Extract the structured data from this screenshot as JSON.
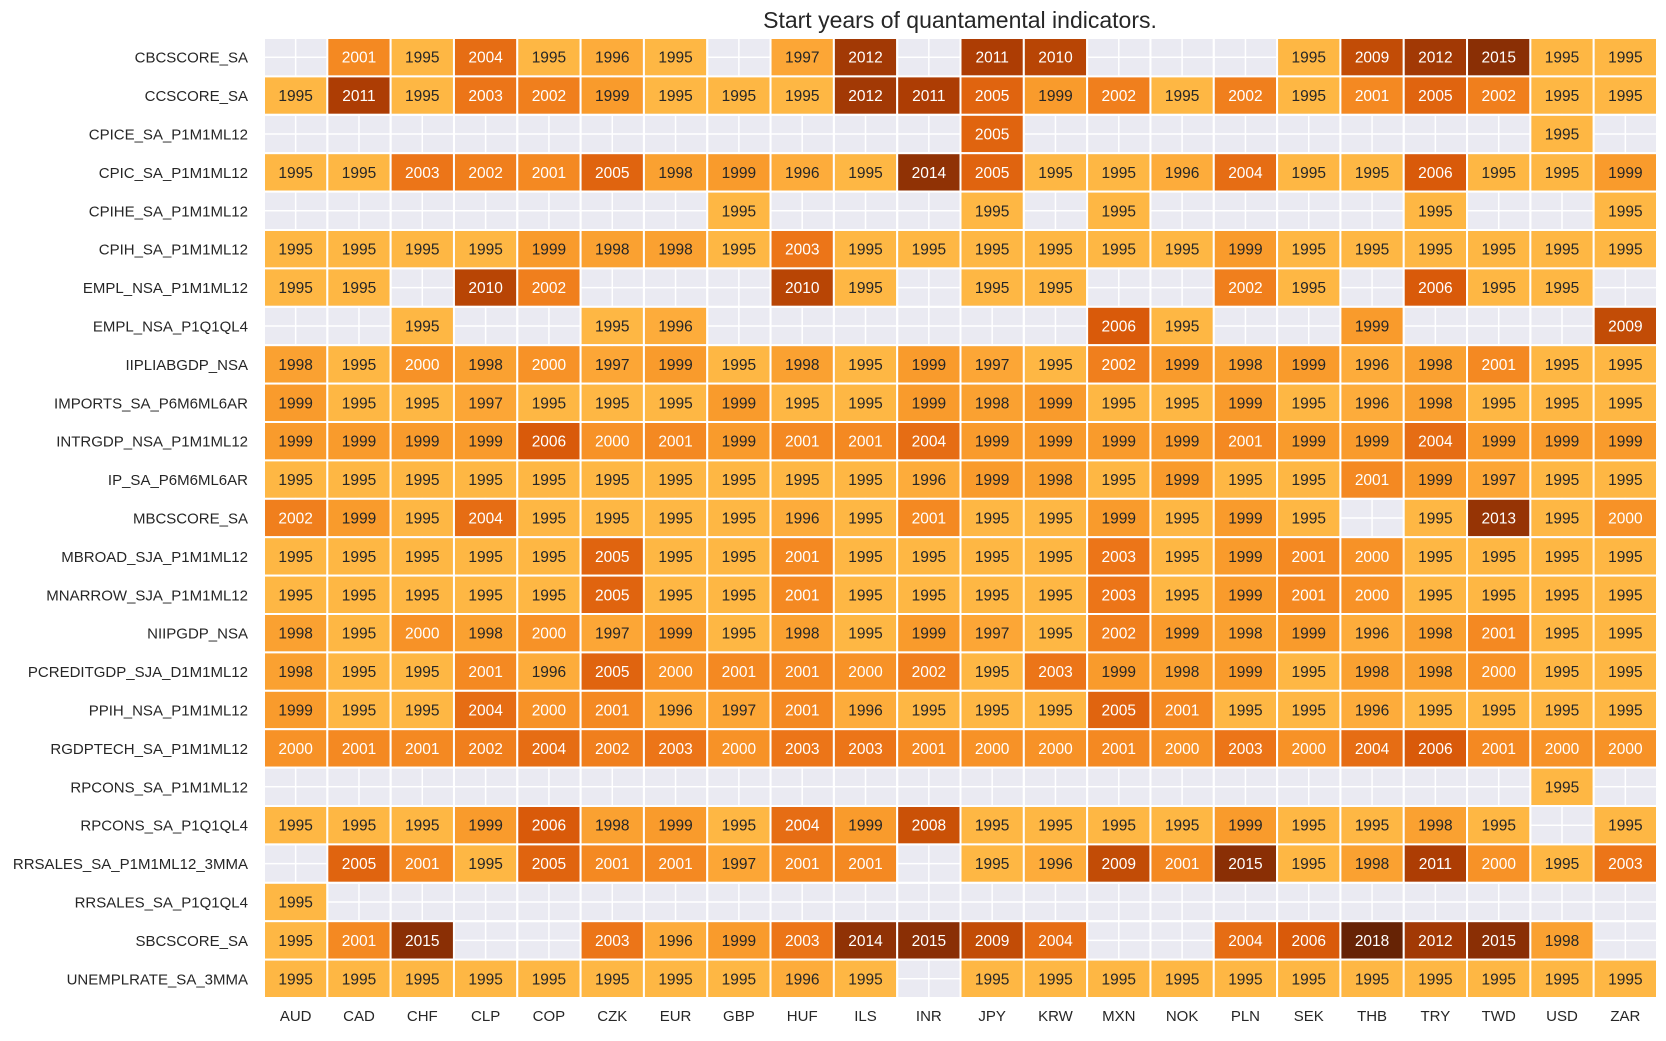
{
  "chart_data": {
    "type": "heatmap",
    "title": "Start years of quantamental indicators.",
    "xlabel": "",
    "ylabel": "",
    "colormap": "YlOrBr",
    "color_range": [
      1995,
      2018
    ],
    "missing_color": "#eaeaf2",
    "grid": true,
    "x": [
      "AUD",
      "CAD",
      "CHF",
      "CLP",
      "COP",
      "CZK",
      "EUR",
      "GBP",
      "HUF",
      "ILS",
      "INR",
      "JPY",
      "KRW",
      "MXN",
      "NOK",
      "PLN",
      "SEK",
      "THB",
      "TRY",
      "TWD",
      "USD",
      "ZAR"
    ],
    "y": [
      "CBCSCORE_SA",
      "CCSCORE_SA",
      "CPICE_SA_P1M1ML12",
      "CPIC_SA_P1M1ML12",
      "CPIHE_SA_P1M1ML12",
      "CPIH_SA_P1M1ML12",
      "EMPL_NSA_P1M1ML12",
      "EMPL_NSA_P1Q1QL4",
      "IIPLIABGDP_NSA",
      "IMPORTS_SA_P6M6ML6AR",
      "INTRGDP_NSA_P1M1ML12",
      "IP_SA_P6M6ML6AR",
      "MBCSCORE_SA",
      "MBROAD_SJA_P1M1ML12",
      "MNARROW_SJA_P1M1ML12",
      "NIIPGDP_NSA",
      "PCREDITGDP_SJA_D1M1ML12",
      "PPIH_NSA_P1M1ML12",
      "RGDPTECH_SA_P1M1ML12",
      "RPCONS_SA_P1M1ML12",
      "RPCONS_SA_P1Q1QL4",
      "RRSALES_SA_P1M1ML12_3MMA",
      "RRSALES_SA_P1Q1QL4",
      "SBCSCORE_SA",
      "UNEMPLRATE_SA_3MMA"
    ],
    "values": [
      [
        null,
        2001,
        1995,
        2004,
        1995,
        1996,
        1995,
        null,
        1997,
        2012,
        null,
        2011,
        2010,
        null,
        null,
        null,
        1995,
        2009,
        2012,
        2015,
        1995,
        1995
      ],
      [
        1995,
        2011,
        1995,
        2003,
        2002,
        1999,
        1995,
        1995,
        1995,
        2012,
        2011,
        2005,
        1999,
        2002,
        1995,
        2002,
        1995,
        2001,
        2005,
        2002,
        1995,
        1995
      ],
      [
        null,
        null,
        null,
        null,
        null,
        null,
        null,
        null,
        null,
        null,
        null,
        2005,
        null,
        null,
        null,
        null,
        null,
        null,
        null,
        null,
        1995,
        null
      ],
      [
        1995,
        1995,
        2003,
        2002,
        2001,
        2005,
        1998,
        1999,
        1996,
        1995,
        2014,
        2005,
        1995,
        1995,
        1996,
        2004,
        1995,
        1995,
        2006,
        1995,
        1995,
        1999
      ],
      [
        null,
        null,
        null,
        null,
        null,
        null,
        null,
        1995,
        null,
        null,
        null,
        1995,
        null,
        1995,
        null,
        null,
        null,
        null,
        1995,
        null,
        null,
        1995
      ],
      [
        1995,
        1995,
        1995,
        1995,
        1999,
        1998,
        1998,
        1995,
        2003,
        1995,
        1995,
        1995,
        1995,
        1995,
        1995,
        1999,
        1995,
        1995,
        1995,
        1995,
        1995,
        1995
      ],
      [
        1995,
        1995,
        null,
        2010,
        2002,
        null,
        null,
        null,
        2010,
        1995,
        null,
        1995,
        1995,
        null,
        null,
        2002,
        1995,
        null,
        2006,
        1995,
        1995,
        null
      ],
      [
        null,
        null,
        1995,
        null,
        null,
        1995,
        1996,
        null,
        null,
        null,
        null,
        null,
        null,
        2006,
        1995,
        null,
        null,
        1999,
        null,
        null,
        null,
        2009
      ],
      [
        1998,
        1995,
        2000,
        1998,
        2000,
        1997,
        1999,
        1995,
        1998,
        1995,
        1999,
        1997,
        1995,
        2002,
        1999,
        1998,
        1999,
        1996,
        1998,
        2001,
        1995,
        1995
      ],
      [
        1999,
        1995,
        1995,
        1997,
        1995,
        1995,
        1995,
        1999,
        1995,
        1995,
        1999,
        1998,
        1999,
        1995,
        1995,
        1999,
        1995,
        1996,
        1998,
        1995,
        1995,
        1995
      ],
      [
        1999,
        1999,
        1999,
        1999,
        2006,
        2000,
        2001,
        1999,
        2001,
        2001,
        2004,
        1999,
        1999,
        1999,
        1999,
        2001,
        1999,
        1999,
        2004,
        1999,
        1999,
        1999
      ],
      [
        1995,
        1995,
        1995,
        1995,
        1995,
        1995,
        1995,
        1995,
        1995,
        1995,
        1996,
        1999,
        1998,
        1995,
        1999,
        1995,
        1995,
        2001,
        1999,
        1997,
        1995,
        1995
      ],
      [
        2002,
        1999,
        1995,
        2004,
        1995,
        1995,
        1995,
        1995,
        1996,
        1995,
        2001,
        1995,
        1995,
        1999,
        1995,
        1999,
        1995,
        null,
        1995,
        2013,
        1995,
        2000
      ],
      [
        1995,
        1995,
        1995,
        1995,
        1995,
        2005,
        1995,
        1995,
        2001,
        1995,
        1995,
        1995,
        1995,
        2003,
        1995,
        1999,
        2001,
        2000,
        1995,
        1995,
        1995,
        1995
      ],
      [
        1995,
        1995,
        1995,
        1995,
        1995,
        2005,
        1995,
        1995,
        2001,
        1995,
        1995,
        1995,
        1995,
        2003,
        1995,
        1999,
        2001,
        2000,
        1995,
        1995,
        1995,
        1995
      ],
      [
        1998,
        1995,
        2000,
        1998,
        2000,
        1997,
        1999,
        1995,
        1998,
        1995,
        1999,
        1997,
        1995,
        2002,
        1999,
        1998,
        1999,
        1996,
        1998,
        2001,
        1995,
        1995
      ],
      [
        1998,
        1995,
        1995,
        2001,
        1996,
        2005,
        2000,
        2001,
        2001,
        2000,
        2002,
        1995,
        2003,
        1999,
        1998,
        1999,
        1995,
        1998,
        1998,
        2000,
        1995,
        1995
      ],
      [
        1999,
        1995,
        1995,
        2004,
        2000,
        2001,
        1996,
        1997,
        2001,
        1996,
        1995,
        1995,
        1995,
        2005,
        2001,
        1995,
        1995,
        1996,
        1995,
        1995,
        1995,
        1995
      ],
      [
        2000,
        2001,
        2001,
        2002,
        2004,
        2002,
        2003,
        2000,
        2003,
        2003,
        2001,
        2000,
        2000,
        2001,
        2000,
        2003,
        2000,
        2004,
        2006,
        2001,
        2000,
        2000
      ],
      [
        null,
        null,
        null,
        null,
        null,
        null,
        null,
        null,
        null,
        null,
        null,
        null,
        null,
        null,
        null,
        null,
        null,
        null,
        null,
        null,
        1995,
        null
      ],
      [
        1995,
        1995,
        1995,
        1999,
        2006,
        1998,
        1999,
        1995,
        2004,
        1999,
        2008,
        1995,
        1995,
        1995,
        1995,
        1999,
        1995,
        1995,
        1998,
        1995,
        null,
        1995
      ],
      [
        null,
        2005,
        2001,
        1995,
        2005,
        2001,
        2001,
        1997,
        2001,
        2001,
        null,
        1995,
        1996,
        2009,
        2001,
        2015,
        1995,
        1998,
        2011,
        2000,
        1995,
        2003
      ],
      [
        1995,
        null,
        null,
        null,
        null,
        null,
        null,
        null,
        null,
        null,
        null,
        null,
        null,
        null,
        null,
        null,
        null,
        null,
        null,
        null,
        null,
        null
      ],
      [
        1995,
        2001,
        2015,
        null,
        null,
        2003,
        1996,
        1999,
        2003,
        2014,
        2015,
        2009,
        2004,
        null,
        null,
        2004,
        2006,
        2018,
        2012,
        2015,
        1998,
        null
      ],
      [
        1995,
        1995,
        1995,
        1995,
        1995,
        1995,
        1995,
        1995,
        1996,
        1995,
        null,
        1995,
        1995,
        1995,
        1995,
        1995,
        1995,
        1995,
        1995,
        1995,
        1995,
        1995
      ]
    ]
  }
}
